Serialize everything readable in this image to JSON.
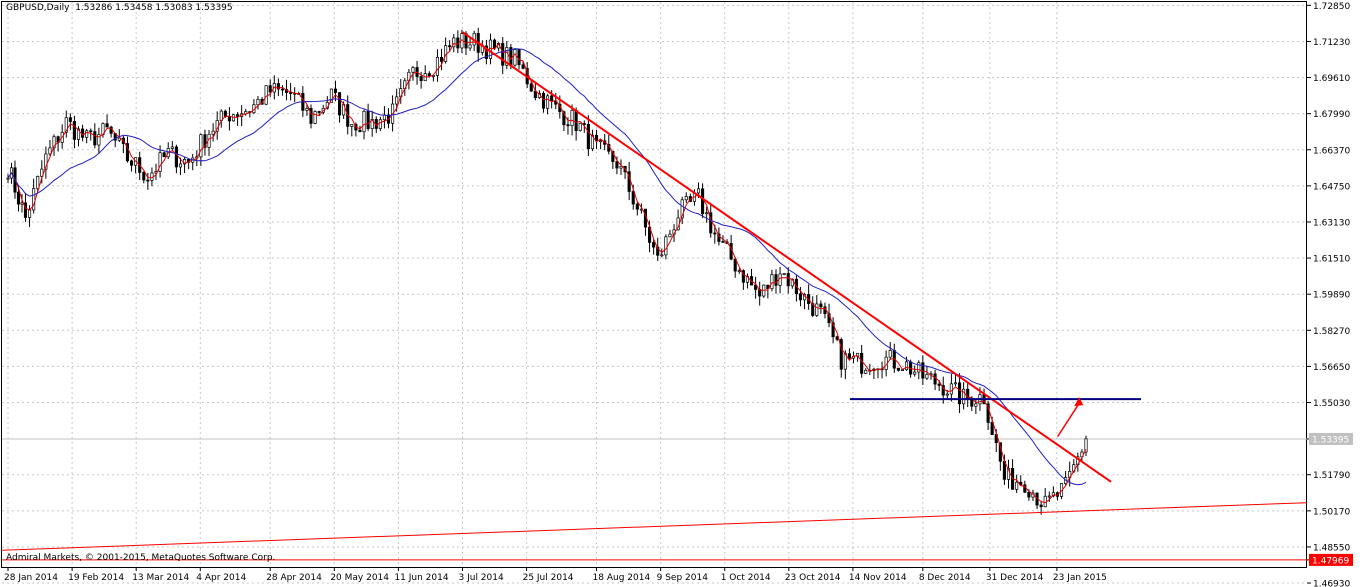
{
  "header": {
    "symbol": "GBPUSD,Daily",
    "ohlc": "1.53286 1.53458 1.53083 1.53395"
  },
  "footer": {
    "copyright": "Admiral Markets, © 2001-2015, MetaQuotes Software Corp."
  },
  "colors": {
    "background": "#ffffff",
    "grid": "#c8c8c8",
    "bull_candle": "#000000",
    "bear_candle": "#000000",
    "ma_fast": "#e00000",
    "ma_slow": "#2020c0",
    "trendline": "#ff0000",
    "support_line": "#000080",
    "current_price_line": "#c0c0c0",
    "level_line": "#ff0000",
    "level_label_bg": "#ff0000"
  },
  "chart_data": {
    "type": "candlestick",
    "instrument": "GBPUSD",
    "timeframe": "Daily",
    "ylim": [
      1.4765,
      1.73
    ],
    "y_ticks": [
      "1.72850",
      "1.71230",
      "1.69610",
      "1.67990",
      "1.66370",
      "1.64750",
      "1.63130",
      "1.61510",
      "1.59890",
      "1.58270",
      "1.56650",
      "1.55030",
      "1.53395",
      "1.51790",
      "1.50170",
      "1.48550",
      "1.47969",
      "1.46930"
    ],
    "x_ticks": [
      "28 Jan 2014",
      "19 Feb 2014",
      "13 Mar 2014",
      "4 Apr 2014",
      "28 Apr 2014",
      "20 May 2014",
      "11 Jun 2014",
      "3 Jul 2014",
      "25 Jul 2014",
      "18 Aug 2014",
      "9 Sep 2014",
      "1 Oct 2014",
      "23 Oct 2014",
      "14 Nov 2014",
      "8 Dec 2014",
      "31 Dec 2014",
      "23 Jan 2015"
    ],
    "current_price": 1.53395,
    "horizontal_level": 1.47969,
    "close_path": [
      [
        "28 Jan 2014",
        1.656
      ],
      [
        "3 Feb 2014",
        1.633
      ],
      [
        "10 Feb 2014",
        1.66
      ],
      [
        "17 Feb 2014",
        1.676
      ],
      [
        "24 Feb 2014",
        1.668
      ],
      [
        "3 Mar 2014",
        1.672
      ],
      [
        "10 Mar 2014",
        1.66
      ],
      [
        "17 Mar 2014",
        1.652
      ],
      [
        "24 Mar 2014",
        1.662
      ],
      [
        "31 Mar 2014",
        1.658
      ],
      [
        "7 Apr 2014",
        1.672
      ],
      [
        "14 Apr 2014",
        1.68
      ],
      [
        "21 Apr 2014",
        1.682
      ],
      [
        "28 Apr 2014",
        1.69
      ],
      [
        "5 May 2014",
        1.689
      ],
      [
        "12 May 2014",
        1.678
      ],
      [
        "19 May 2014",
        1.688
      ],
      [
        "26 May 2014",
        1.676
      ],
      [
        "2 Jun 2014",
        1.676
      ],
      [
        "9 Jun 2014",
        1.68
      ],
      [
        "16 Jun 2014",
        1.698
      ],
      [
        "23 Jun 2014",
        1.702
      ],
      [
        "30 Jun 2014",
        1.712
      ],
      [
        "7 Jul 2014",
        1.712
      ],
      [
        "14 Jul 2014",
        1.708
      ],
      [
        "21 Jul 2014",
        1.704
      ],
      [
        "28 Jul 2014",
        1.69
      ],
      [
        "4 Aug 2014",
        1.682
      ],
      [
        "11 Aug 2014",
        1.676
      ],
      [
        "18 Aug 2014",
        1.664
      ],
      [
        "25 Aug 2014",
        1.658
      ],
      [
        "1 Sep 2014",
        1.638
      ],
      [
        "8 Sep 2014",
        1.614
      ],
      [
        "15 Sep 2014",
        1.635
      ],
      [
        "22 Sep 2014",
        1.642
      ],
      [
        "29 Sep 2014",
        1.622
      ],
      [
        "6 Oct 2014",
        1.61
      ],
      [
        "13 Oct 2014",
        1.598
      ],
      [
        "20 Oct 2014",
        1.61
      ],
      [
        "27 Oct 2014",
        1.599
      ],
      [
        "3 Nov 2014",
        1.59
      ],
      [
        "10 Nov 2014",
        1.57
      ],
      [
        "17 Nov 2014",
        1.568
      ],
      [
        "24 Nov 2014",
        1.57
      ],
      [
        "1 Dec 2014",
        1.568
      ],
      [
        "8 Dec 2014",
        1.562
      ],
      [
        "15 Dec 2014",
        1.558
      ],
      [
        "22 Dec 2014",
        1.552
      ],
      [
        "29 Dec 2014",
        1.553
      ],
      [
        "5 Jan 2015",
        1.516
      ],
      [
        "12 Jan 2015",
        1.515
      ],
      [
        "19 Jan 2015",
        1.504
      ],
      [
        "26 Jan 2015",
        1.512
      ],
      [
        "2 Feb 2015",
        1.534
      ]
    ],
    "annotations": {
      "descending_trendline": [
        [
          "3 Jul 2014",
          1.7165
        ],
        [
          "2 Feb 2015",
          1.5165
        ]
      ],
      "support_line": [
        [
          "14 Nov 2014",
          1.5518
        ],
        [
          "2 Feb 2015",
          1.5518
        ]
      ],
      "rising_line": [
        [
          "28 Jan 2014",
          1.484
        ],
        [
          "2 Feb 2015",
          1.504
        ]
      ],
      "breakout_arrow": [
        [
          "26 Jan 2015",
          1.535
        ],
        [
          "30 Jan 2015",
          1.55
        ]
      ]
    }
  }
}
